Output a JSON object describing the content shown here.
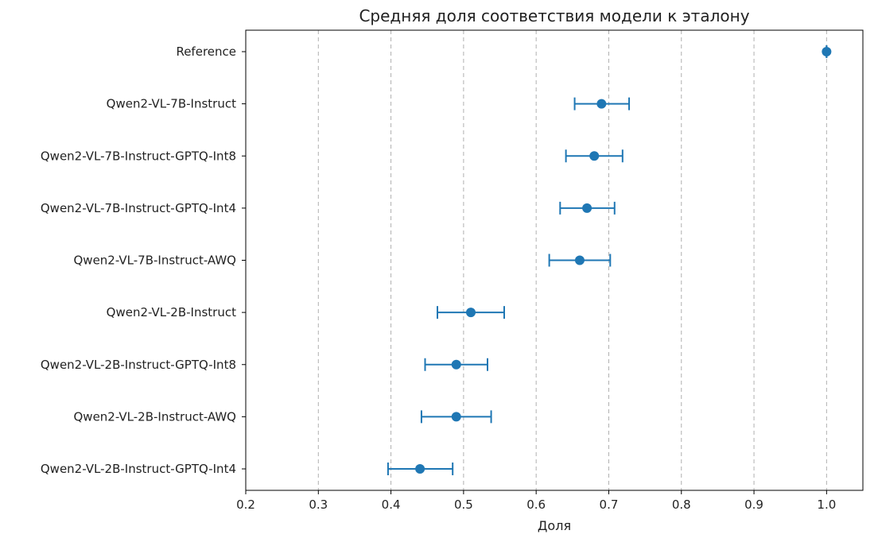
{
  "chart_data": {
    "type": "errorbar",
    "title": "Средняя доля соответствия модели к эталону",
    "xlabel": "Доля",
    "ylabel": "",
    "xlim": [
      0.2,
      1.05
    ],
    "xticks": [
      "0.2",
      "0.3",
      "0.4",
      "0.5",
      "0.6",
      "0.7",
      "0.8",
      "0.9",
      "1.0"
    ],
    "grid": "vertical-dashed",
    "orientation": "horizontal",
    "series_color": "#1f77b4",
    "categories": [
      "Reference",
      "Qwen2-VL-7B-Instruct",
      "Qwen2-VL-7B-Instruct-GPTQ-Int8",
      "Qwen2-VL-7B-Instruct-GPTQ-Int4",
      "Qwen2-VL-7B-Instruct-AWQ",
      "Qwen2-VL-2B-Instruct",
      "Qwen2-VL-2B-Instruct-GPTQ-Int8",
      "Qwen2-VL-2B-Instruct-AWQ",
      "Qwen2-VL-2B-Instruct-GPTQ-Int4"
    ],
    "values": [
      1.0,
      0.69,
      0.68,
      0.67,
      0.66,
      0.51,
      0.49,
      0.49,
      0.44
    ],
    "lower": [
      1.0,
      0.653,
      0.641,
      0.633,
      0.618,
      0.464,
      0.447,
      0.442,
      0.396
    ],
    "upper": [
      1.0,
      0.728,
      0.719,
      0.708,
      0.702,
      0.556,
      0.533,
      0.538,
      0.485
    ]
  }
}
